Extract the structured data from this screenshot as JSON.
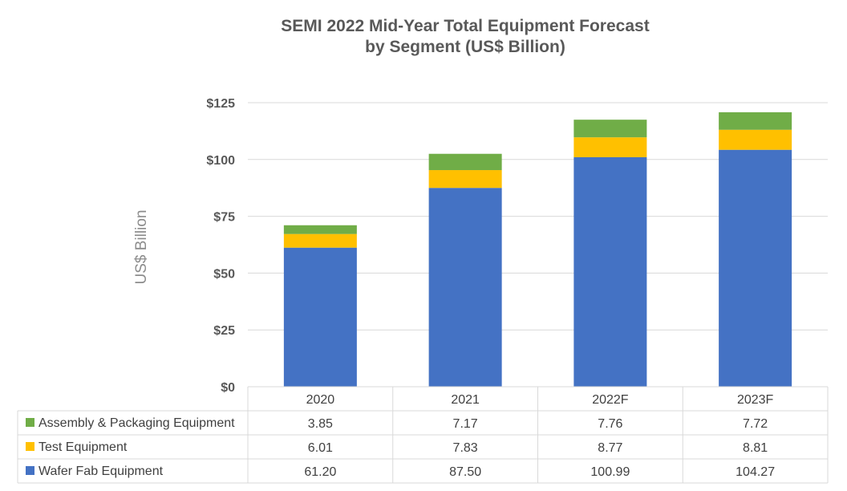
{
  "chart_data": {
    "type": "bar",
    "stacked": true,
    "title_line1": "SEMI 2022 Mid-Year Total Equipment Forecast",
    "title_line2": "by Segment (US$ Billion)",
    "ylabel": "US$ Billion",
    "xlabel": "",
    "ylim": [
      0,
      125
    ],
    "yticks": [
      0,
      25,
      50,
      75,
      100,
      125
    ],
    "ytick_labels": [
      "$0",
      "$25",
      "$50",
      "$75",
      "$100",
      "$125"
    ],
    "grid": true,
    "categories": [
      "2020",
      "2021",
      "2022F",
      "2023F"
    ],
    "series": [
      {
        "name": "Wafer Fab Equipment",
        "color": "#4472C4",
        "values": [
          61.2,
          87.5,
          100.99,
          104.27
        ],
        "labels": [
          "61.20",
          "87.50",
          "100.99",
          "104.27"
        ]
      },
      {
        "name": "Test Equipment",
        "color": "#FFC000",
        "values": [
          6.01,
          7.83,
          8.77,
          8.81
        ],
        "labels": [
          "6.01",
          "7.83",
          "8.77",
          "8.81"
        ]
      },
      {
        "name": "Assembly & Packaging Equipment",
        "color": "#70AD47",
        "values": [
          3.85,
          7.17,
          7.76,
          7.72
        ],
        "labels": [
          "3.85",
          "7.17",
          "7.76",
          "7.72"
        ]
      }
    ],
    "table_row_order": [
      "Assembly & Packaging Equipment",
      "Test Equipment",
      "Wafer Fab Equipment"
    ]
  }
}
